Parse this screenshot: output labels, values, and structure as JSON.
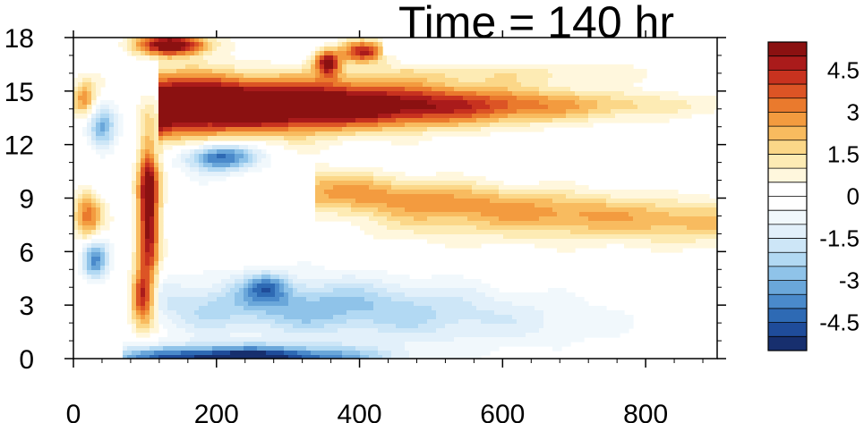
{
  "chart_data": {
    "type": "heatmap",
    "title": "Time = 140 hr",
    "xlabel": "",
    "ylabel": "",
    "xlim": [
      0,
      900
    ],
    "ylim": [
      0,
      18
    ],
    "x_ticks": [
      0,
      200,
      400,
      600,
      800
    ],
    "y_ticks": [
      0,
      3,
      6,
      9,
      12,
      15,
      18
    ],
    "colorbar": {
      "levels": [
        -5.5,
        -5,
        -4.5,
        -4,
        -3.5,
        -3,
        -2.5,
        -2,
        -1.5,
        -1,
        -0.5,
        0,
        0.5,
        1,
        1.5,
        2,
        2.5,
        3,
        3.5,
        4,
        4.5,
        5,
        5.5
      ],
      "labels": [
        "4.5",
        "3",
        "1.5",
        "0",
        "-1.5",
        "-3",
        "-4.5"
      ],
      "colors": [
        "#172f6e",
        "#1f4c9a",
        "#2e6ab4",
        "#4a8acb",
        "#6aa7da",
        "#8fc3e9",
        "#b2d9f3",
        "#cde6f7",
        "#e2f0fa",
        "#f1f8fc",
        "#ffffff",
        "#ffffff",
        "#fff7dd",
        "#fdebb4",
        "#fbd788",
        "#f8bb5f",
        "#f39b3f",
        "#ea7a2d",
        "#dc5425",
        "#c8321f",
        "#aa1b1b",
        "#8b1111"
      ]
    },
    "features": [
      {
        "desc": "upper positive tongue",
        "x": [
          125,
          600
        ],
        "y_center": 14.2,
        "peak": 5.5,
        "sign": "positive"
      },
      {
        "desc": "mid positive band",
        "x": [
          330,
          900
        ],
        "y_center": 8.8,
        "peak": 3,
        "sign": "positive"
      },
      {
        "desc": "near-surface negative band",
        "x": [
          70,
          450
        ],
        "y_center": 0.6,
        "peak": -5.5,
        "sign": "negative"
      },
      {
        "desc": "lower negative region",
        "x": [
          130,
          650
        ],
        "y_center": 3.2,
        "peak": -3.5,
        "sign": "negative"
      },
      {
        "desc": "deep positive column",
        "x": [
          60,
          125
        ],
        "y_center": 8,
        "peak": 5.5,
        "sign": "positive"
      }
    ]
  }
}
